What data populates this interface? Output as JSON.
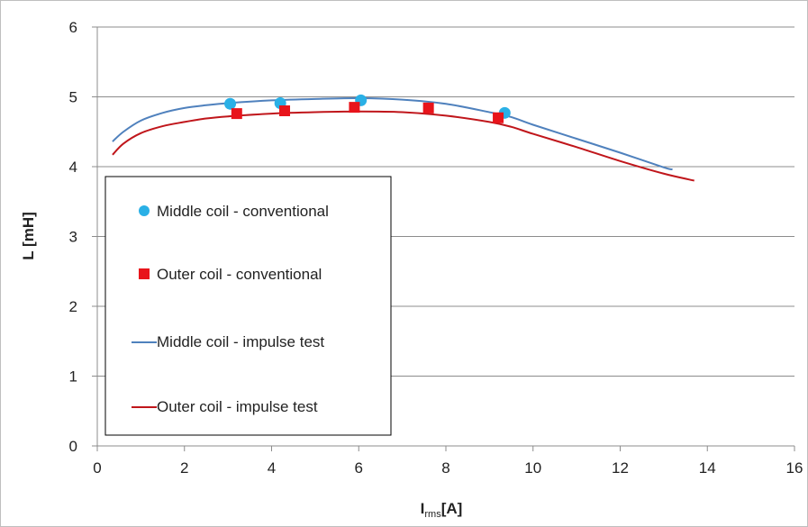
{
  "chart_data": {
    "type": "scatter",
    "xlabel_main": "I",
    "xlabel_sub": "rms",
    "xlabel_unit": "[A]",
    "ylabel": "L [mH]",
    "xlim": [
      0,
      16
    ],
    "ylim": [
      0,
      6
    ],
    "xticks": [
      "0",
      "2",
      "4",
      "6",
      "8",
      "10",
      "12",
      "14",
      "16"
    ],
    "yticks": [
      "0",
      "1",
      "2",
      "3",
      "4",
      "5",
      "6"
    ],
    "grid": "horizontal",
    "legend_position": "left",
    "series": [
      {
        "name": "Middle coil - conventional",
        "kind": "markers",
        "marker": "circle",
        "color": "#2ab0e6",
        "x": [
          3.05,
          4.2,
          6.05,
          9.35
        ],
        "y": [
          4.9,
          4.91,
          4.95,
          4.77
        ]
      },
      {
        "name": "Outer coil - conventional",
        "kind": "markers",
        "marker": "square",
        "color": "#e8141b",
        "x": [
          3.2,
          4.3,
          5.9,
          7.6,
          9.2
        ],
        "y": [
          4.76,
          4.8,
          4.85,
          4.84,
          4.7
        ]
      },
      {
        "name": "Middle coil - impulse test",
        "kind": "line",
        "color": "#4f81bd",
        "x": [
          0.35,
          0.6,
          1.0,
          1.5,
          2.0,
          2.5,
          3.0,
          4.0,
          5.0,
          6.0,
          7.0,
          8.0,
          9.0,
          9.5,
          10.0,
          11.0,
          12.0,
          13.0,
          13.2
        ],
        "y": [
          4.36,
          4.5,
          4.66,
          4.77,
          4.84,
          4.88,
          4.91,
          4.95,
          4.97,
          4.98,
          4.96,
          4.9,
          4.78,
          4.71,
          4.6,
          4.4,
          4.2,
          3.99,
          3.96
        ]
      },
      {
        "name": "Outer coil - impulse test",
        "kind": "line",
        "color": "#c0161b",
        "x": [
          0.35,
          0.6,
          1.0,
          1.5,
          2.0,
          2.5,
          3.0,
          4.0,
          5.0,
          6.0,
          7.0,
          8.0,
          9.0,
          9.5,
          10.0,
          11.0,
          12.0,
          13.0,
          13.7
        ],
        "y": [
          4.17,
          4.33,
          4.48,
          4.58,
          4.64,
          4.69,
          4.72,
          4.76,
          4.78,
          4.79,
          4.78,
          4.73,
          4.64,
          4.57,
          4.47,
          4.28,
          4.08,
          3.9,
          3.8
        ]
      }
    ]
  }
}
